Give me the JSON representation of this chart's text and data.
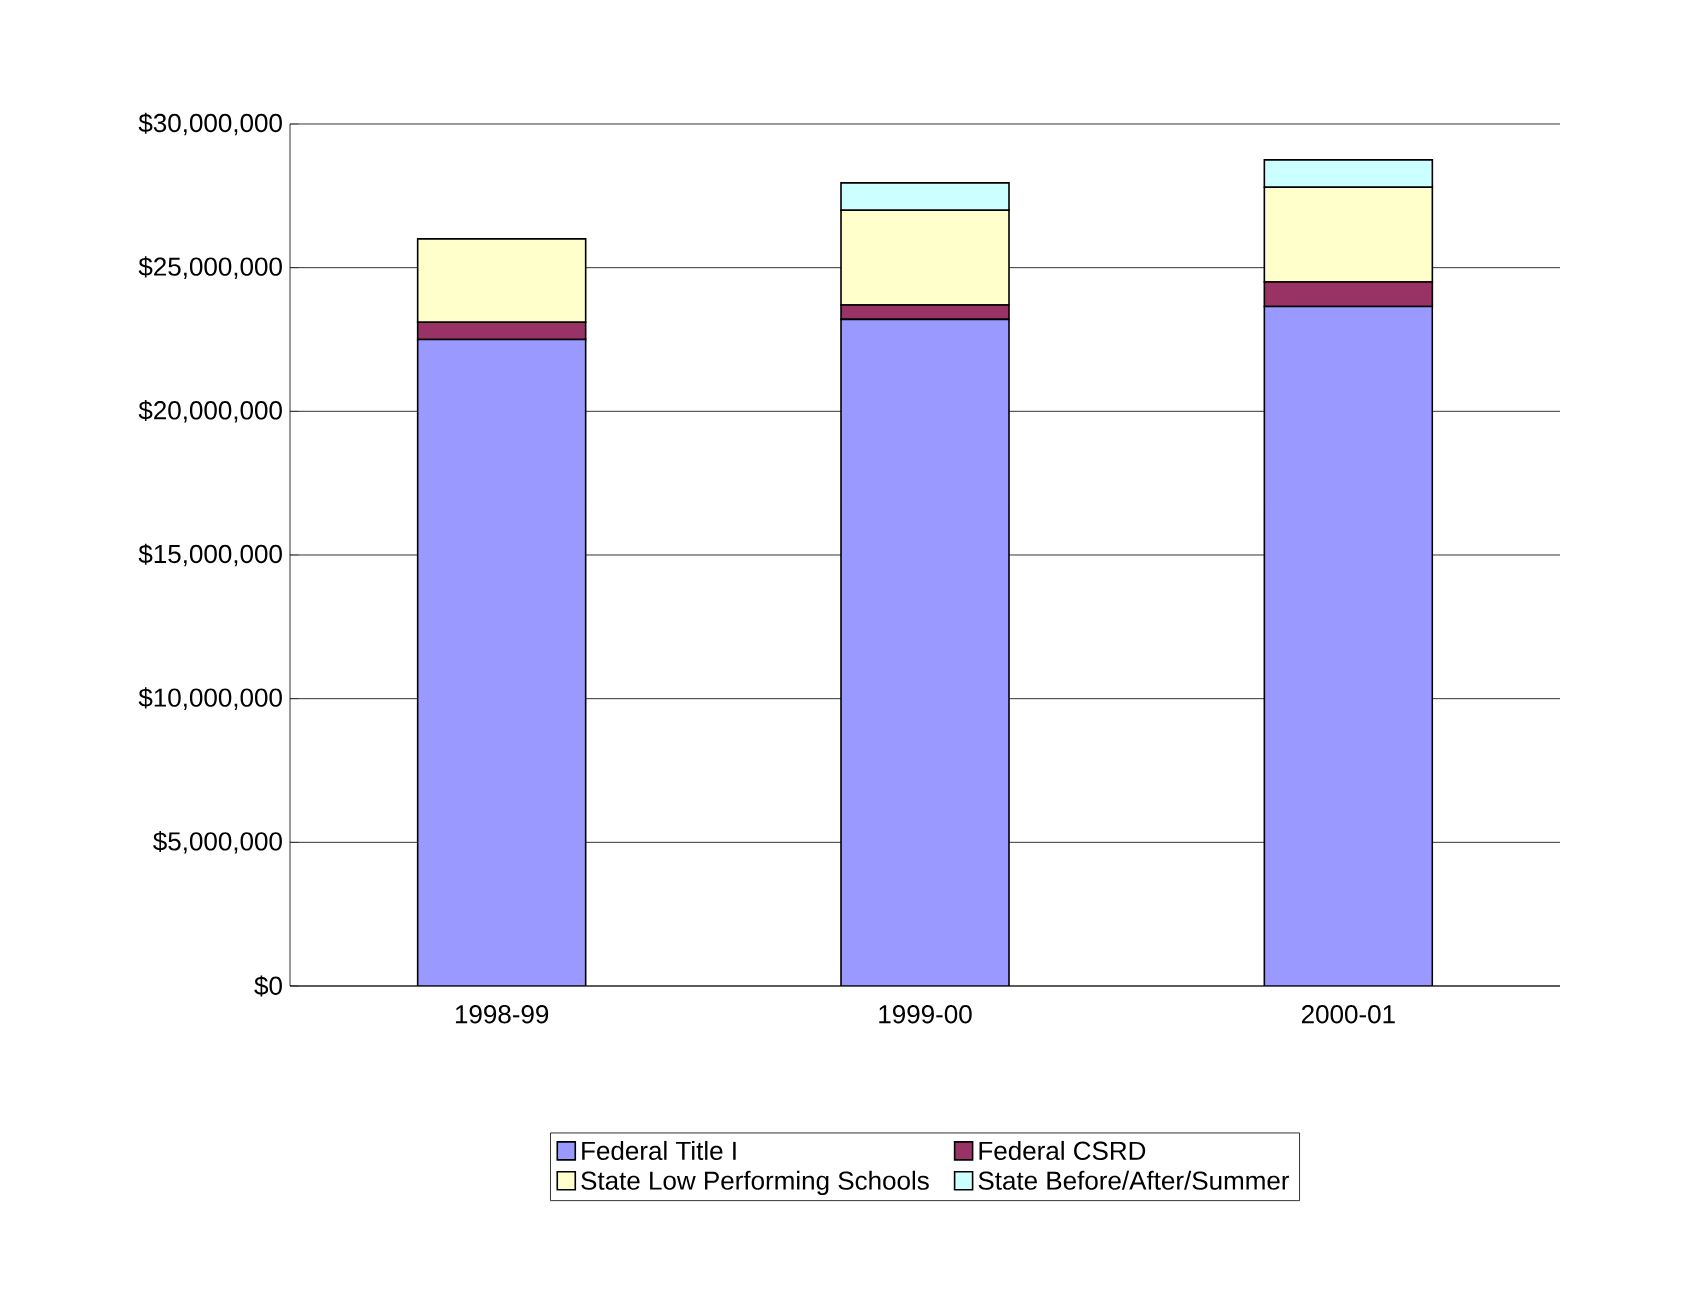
{
  "chart_data": {
    "type": "bar",
    "stacked": true,
    "categories": [
      "1998-99",
      "1999-00",
      "2000-01"
    ],
    "series": [
      {
        "name": "Federal Title I",
        "color": "#9999ff",
        "values": [
          22500000,
          23200000,
          23650000
        ]
      },
      {
        "name": "Federal CSRD",
        "color": "#993366",
        "values": [
          600000,
          500000,
          850000
        ]
      },
      {
        "name": "State Low Performing Schools",
        "color": "#ffffcc",
        "values": [
          2900000,
          3300000,
          3300000
        ]
      },
      {
        "name": "State Before/After/Summer",
        "color": "#ccffff",
        "values": [
          0,
          950000,
          950000
        ]
      }
    ],
    "ylim": [
      0,
      30000000
    ],
    "yticks": [
      {
        "value": 0,
        "label": "$0"
      },
      {
        "value": 5000000,
        "label": "$5,000,000"
      },
      {
        "value": 10000000,
        "label": "$10,000,000"
      },
      {
        "value": 15000000,
        "label": "$15,000,000"
      },
      {
        "value": 20000000,
        "label": "$20,000,000"
      },
      {
        "value": 25000000,
        "label": "$25,000,000"
      },
      {
        "value": 30000000,
        "label": "$30,000,000"
      }
    ],
    "grid": "y",
    "legend": "bottom"
  }
}
